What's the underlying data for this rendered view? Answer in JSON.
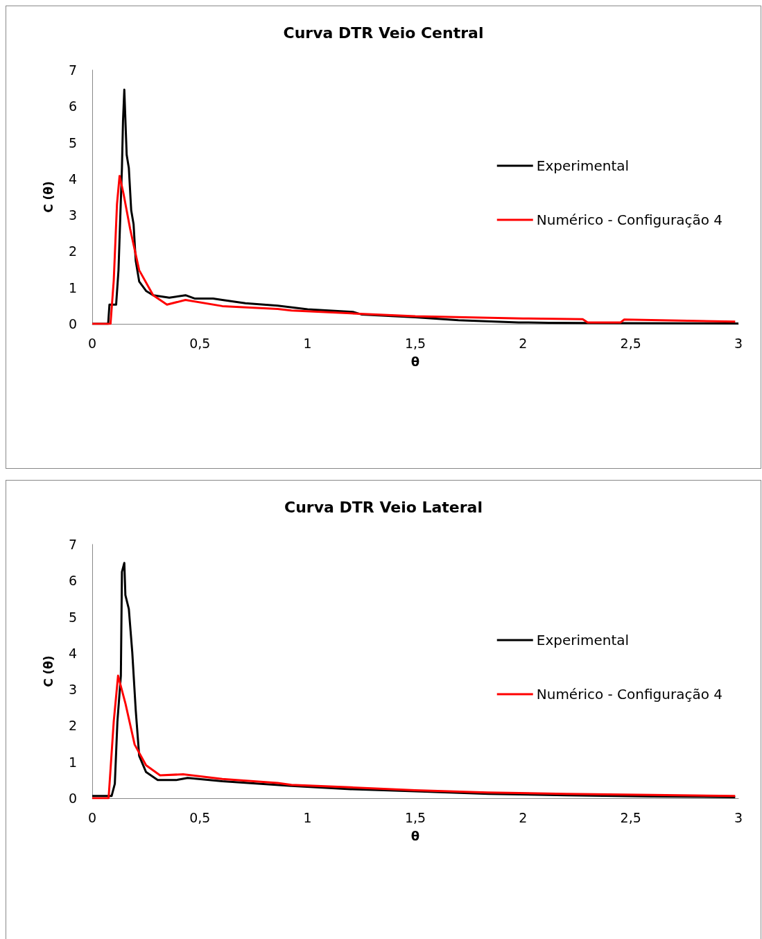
{
  "chart_data": [
    {
      "type": "line",
      "title": "Curva DTR Veio Central",
      "xlabel": "θ",
      "ylabel": "C (θ)",
      "xlim": [
        0,
        3
      ],
      "xticks": [
        0,
        {
          "value": 0.5,
          "label": "0,5"
        },
        1,
        {
          "value": 1.5,
          "label": "1,5"
        },
        2,
        {
          "value": 2.5,
          "label": "2,5"
        },
        3
      ],
      "ylim": [
        0,
        7
      ],
      "yticks": [
        0,
        1,
        2,
        3,
        4,
        5,
        6,
        7
      ],
      "grid": false,
      "legend": "right",
      "series": [
        {
          "name": "Experimental",
          "color": "#000000",
          "x": [
            0,
            0.074,
            0.08,
            0.111,
            0.122,
            0.138,
            0.143,
            0.149,
            0.16,
            0.17,
            0.181,
            0.192,
            0.202,
            0.218,
            0.25,
            0.283,
            0.358,
            0.433,
            0.475,
            0.561,
            0.604,
            0.711,
            0.861,
            1.0,
            1.21,
            1.25,
            1.5,
            1.7,
            1.98,
            2.12,
            2.5,
            3.0
          ],
          "values": [
            0,
            0,
            0.53,
            0.53,
            1.48,
            4.3,
            5.6,
            6.46,
            4.66,
            4.3,
            3.13,
            2.75,
            1.74,
            1.17,
            0.91,
            0.79,
            0.72,
            0.79,
            0.7,
            0.7,
            0.66,
            0.57,
            0.5,
            0.4,
            0.33,
            0.26,
            0.18,
            0.1,
            0.04,
            0.03,
            0.02,
            0.01
          ]
        },
        {
          "name": "Numérico - Configuração 4",
          "color": "#ff0000",
          "x": [
            0,
            0.085,
            0.1,
            0.115,
            0.127,
            0.145,
            0.176,
            0.218,
            0.283,
            0.347,
            0.433,
            0.604,
            0.861,
            0.925,
            1.2,
            1.5,
            2.0,
            2.277,
            2.3,
            2.453,
            2.47,
            2.985
          ],
          "values": [
            0,
            0,
            1.2,
            3.3,
            4.08,
            3.6,
            2.62,
            1.48,
            0.79,
            0.53,
            0.66,
            0.49,
            0.41,
            0.37,
            0.29,
            0.21,
            0.15,
            0.13,
            0.04,
            0.04,
            0.12,
            0.06
          ]
        }
      ]
    },
    {
      "type": "line",
      "title": "Curva DTR Veio Lateral",
      "xlabel": "θ",
      "ylabel": "C (θ)",
      "xlim": [
        0,
        3
      ],
      "xticks": [
        0,
        {
          "value": 0.5,
          "label": "0,5"
        },
        1,
        {
          "value": 1.5,
          "label": "1,5"
        },
        2,
        {
          "value": 2.5,
          "label": "2,5"
        },
        3
      ],
      "ylim": [
        0,
        7
      ],
      "yticks": [
        0,
        1,
        2,
        3,
        4,
        5,
        6,
        7
      ],
      "grid": false,
      "legend": "right",
      "series": [
        {
          "name": "Experimental",
          "color": "#000000",
          "x": [
            0,
            0.09,
            0.105,
            0.117,
            0.133,
            0.138,
            0.149,
            0.154,
            0.17,
            0.186,
            0.202,
            0.218,
            0.25,
            0.304,
            0.39,
            0.443,
            0.604,
            0.925,
            1.2,
            1.5,
            1.84,
            2.2,
            2.6,
            2.985
          ],
          "values": [
            0.06,
            0.06,
            0.4,
            2.12,
            3.38,
            6.24,
            6.49,
            5.6,
            5.22,
            4.02,
            2.43,
            1.17,
            0.72,
            0.5,
            0.5,
            0.56,
            0.47,
            0.34,
            0.25,
            0.19,
            0.12,
            0.08,
            0.05,
            0.03
          ]
        },
        {
          "name": "Numérico - Configuração 4",
          "color": "#ff0000",
          "x": [
            0,
            0.076,
            0.1,
            0.12,
            0.154,
            0.197,
            0.25,
            0.315,
            0.422,
            0.604,
            0.861,
            0.925,
            1.2,
            1.5,
            1.837,
            2.2,
            2.6,
            2.985
          ],
          "values": [
            0,
            0,
            2.12,
            3.38,
            2.62,
            1.48,
            0.91,
            0.63,
            0.66,
            0.53,
            0.42,
            0.37,
            0.3,
            0.22,
            0.16,
            0.12,
            0.09,
            0.06
          ]
        }
      ]
    }
  ]
}
